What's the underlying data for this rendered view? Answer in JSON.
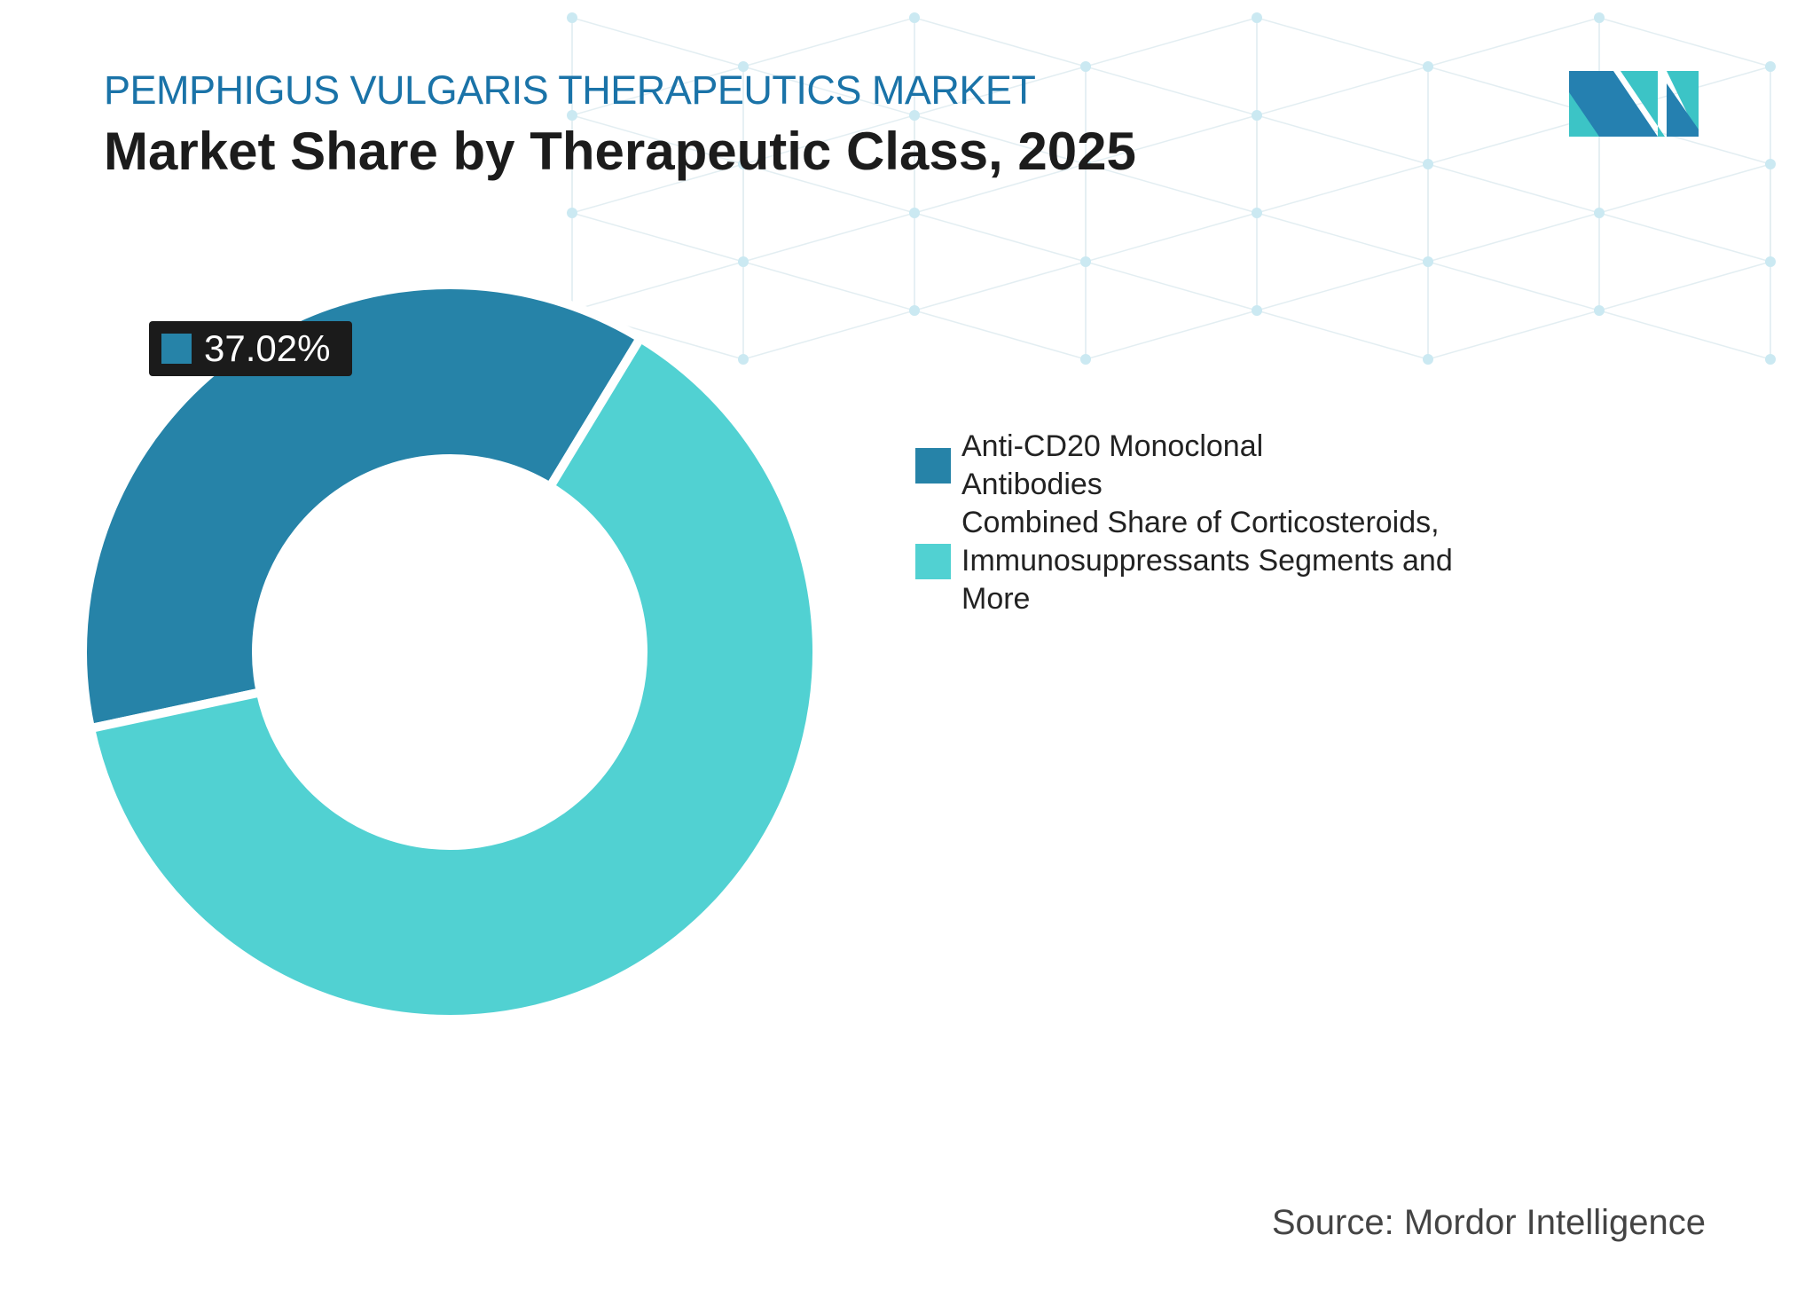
{
  "header": {
    "kicker": "PEMPHIGUS VULGARIS THERAPEUTICS MARKET",
    "title": "Market Share by Therapeutic Class, 2025"
  },
  "source": "Source: Mordor Intelligence",
  "logo": {
    "name": "mordor-intelligence-logo",
    "colors": [
      "#2580b0",
      "#3cc4c6"
    ]
  },
  "chart_data": {
    "type": "pie",
    "variant": "donut",
    "title": "Market Share by Therapeutic Class, 2025",
    "categories": [
      "Anti-CD20 Monoclonal Antibodies",
      "Combined Share of Corticosteroids, Immunosuppressants Segments and More"
    ],
    "values": [
      37.02,
      62.98
    ],
    "colors": [
      "#2683a8",
      "#51d1d2"
    ],
    "data_labels": [
      "37.02%",
      ""
    ],
    "legend_position": "right"
  },
  "legend": {
    "items": [
      {
        "label": "Anti-CD20 Monoclonal Antibodies",
        "color": "#2683a8"
      },
      {
        "label": "Combined Share of Corticosteroids, Immunosuppressants Segments and More",
        "color": "#51d1d2"
      }
    ]
  },
  "callout": {
    "label": "37.02%",
    "color": "#2683a8"
  }
}
